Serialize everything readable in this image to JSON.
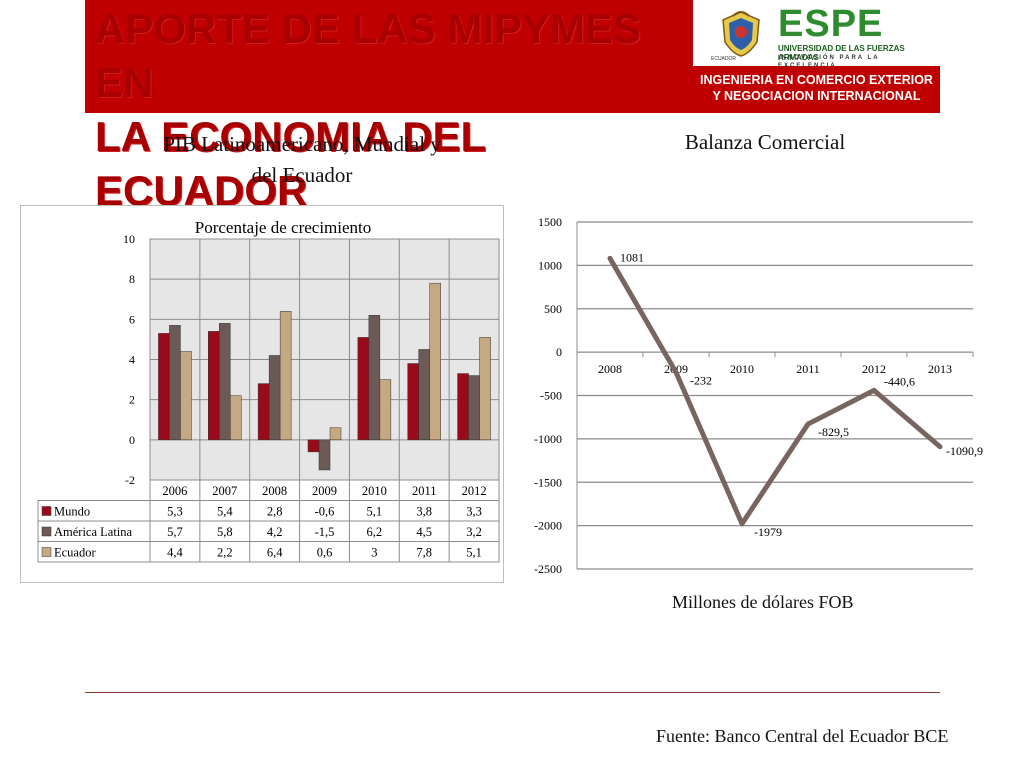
{
  "header": {
    "title_line1": "APORTE DE LAS MIPYMES EN",
    "title_line2": "LA ECONOMIA DEL ECUADOR",
    "logo_text": "ESPE",
    "university": "UNIVERSIDAD DE LAS FUERZAS ARMADAS",
    "motto": "INNOVACIÓN PARA LA EXCELENCIA",
    "crest_caption": "ECUADOR",
    "program_line1": "INGENIERIA EN COMERCIO EXTERIOR",
    "program_line2": "Y NEGOCIACION INTERNACIONAL"
  },
  "left_section": {
    "title_line1": "PIB Latinoamericano, Mundial y",
    "title_line2": "del Ecuador"
  },
  "right_section": {
    "title": "Balanza Comercial",
    "caption": "Millones de dólares FOB"
  },
  "footer": {
    "source": "Fuente: Banco Central del Ecuador BCE"
  },
  "colors": {
    "mundo": "#9a0a1a",
    "america_latina": "#6b5a56",
    "ecuador": "#c4a982",
    "line": "#786560",
    "banner": "#c00000"
  },
  "chart_data": [
    {
      "type": "bar",
      "title": "Porcentaje de crecimiento",
      "categories": [
        "2006",
        "2007",
        "2008",
        "2009",
        "2010",
        "2011",
        "2012"
      ],
      "series": [
        {
          "name": "Mundo",
          "values": [
            5.3,
            5.4,
            2.8,
            -0.6,
            5.1,
            3.8,
            3.3
          ],
          "labels": [
            "5,3",
            "5,4",
            "2,8",
            "-0,6",
            "5,1",
            "3,8",
            "3,3"
          ]
        },
        {
          "name": "América Latina",
          "values": [
            5.7,
            5.8,
            4.2,
            -1.5,
            6.2,
            4.5,
            3.2
          ],
          "labels": [
            "5,7",
            "5,8",
            "4,2",
            "-1,5",
            "6,2",
            "4,5",
            "3,2"
          ]
        },
        {
          "name": "Ecuador",
          "values": [
            4.4,
            2.2,
            6.4,
            0.6,
            3,
            7.8,
            5.1
          ],
          "labels": [
            "4,4",
            "2,2",
            "6,4",
            "0,6",
            "3",
            "7,8",
            "5,1"
          ]
        }
      ],
      "ylim": [
        -2,
        10
      ],
      "yticks": [
        "-2",
        "0",
        "2",
        "4",
        "6",
        "8",
        "10"
      ],
      "grid": true,
      "legend": "data-table"
    },
    {
      "type": "line",
      "x": [
        "2008",
        "2009",
        "2010",
        "2011",
        "2012",
        "2013"
      ],
      "series": [
        {
          "values": [
            1081,
            -232,
            -1979,
            -829.5,
            -440.6,
            -1090.9
          ],
          "labels": [
            "1081",
            "-232",
            "-1979",
            "-829,5",
            "-440,6",
            "-1090,9"
          ]
        }
      ],
      "ylim": [
        -2500,
        1500
      ],
      "yticks": [
        "-2500",
        "-2000",
        "-1500",
        "-1000",
        "-500",
        "0",
        "500",
        "1000",
        "1500"
      ],
      "grid": true
    }
  ]
}
